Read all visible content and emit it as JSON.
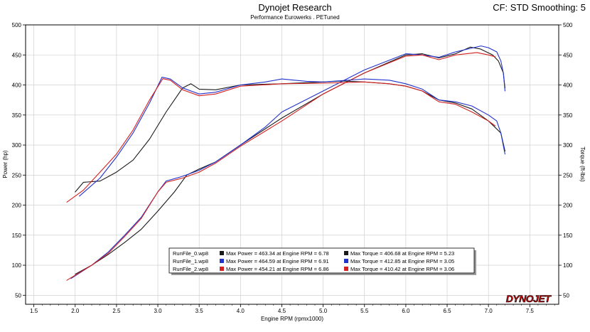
{
  "header": {
    "title": "Dynojet Research",
    "subtitle": "Performance Eurowerks . PETuned",
    "cf_label": "CF: STD Smoothing: 5"
  },
  "logo_text": "DYNOJET",
  "chart_data": {
    "type": "line",
    "xlabel": "Engine RPM (rpmx1000)",
    "ylabel_left": "Power (hp)",
    "ylabel_right": "Torque (ft-lbs)",
    "xlim": [
      1.4,
      7.85
    ],
    "ylim": [
      35,
      500
    ],
    "x_ticks": [
      "1.5",
      "2.0",
      "2.5",
      "3.0",
      "3.5",
      "4.0",
      "4.5",
      "5.0",
      "5.5",
      "6.0",
      "6.5",
      "7.0",
      "7.5"
    ],
    "y_ticks": [
      "50",
      "100",
      "150",
      "200",
      "250",
      "300",
      "350",
      "400",
      "450",
      "500"
    ],
    "grid": true,
    "colors": {
      "run0": "#1a1a1a",
      "run1": "#2233cc",
      "run2": "#d42020"
    },
    "legend": [
      {
        "file": "RunFile_0.wp8",
        "power": "Max Power = 463.34 at Engine RPM = 6.78",
        "torque": "Max Torque = 406.68 at Engine RPM = 5.23",
        "color": "#1a1a1a"
      },
      {
        "file": "RunFile_1.wp8",
        "power": "Max Power = 464.59 at Engine RPM = 6.91",
        "torque": "Max Torque = 412.85 at Engine RPM = 3.05",
        "color": "#2233cc"
      },
      {
        "file": "RunFile_2.wp8",
        "power": "Max Power = 454.21 at Engine RPM = 6.86",
        "torque": "Max Torque = 410.42 at Engine RPM = 3.06",
        "color": "#d42020"
      }
    ],
    "series": [
      {
        "run": "RunFile_0.wp8",
        "kind": "power",
        "color": "#1a1a1a",
        "points": [
          [
            2.0,
            85
          ],
          [
            2.2,
            100
          ],
          [
            2.4,
            118
          ],
          [
            2.6,
            138
          ],
          [
            2.8,
            160
          ],
          [
            3.0,
            190
          ],
          [
            3.2,
            222
          ],
          [
            3.35,
            250
          ],
          [
            3.5,
            260
          ],
          [
            3.7,
            272
          ],
          [
            4.0,
            300
          ],
          [
            4.5,
            345
          ],
          [
            5.0,
            385
          ],
          [
            5.5,
            420
          ],
          [
            6.0,
            450
          ],
          [
            6.2,
            452
          ],
          [
            6.4,
            445
          ],
          [
            6.6,
            452
          ],
          [
            6.78,
            463
          ],
          [
            6.9,
            460
          ],
          [
            7.05,
            450
          ],
          [
            7.12,
            440
          ],
          [
            7.18,
            420
          ],
          [
            7.2,
            395
          ]
        ]
      },
      {
        "run": "RunFile_1.wp8",
        "kind": "power",
        "color": "#2233cc",
        "points": [
          [
            1.95,
            78
          ],
          [
            2.2,
            100
          ],
          [
            2.4,
            122
          ],
          [
            2.6,
            150
          ],
          [
            2.8,
            180
          ],
          [
            3.0,
            222
          ],
          [
            3.1,
            240
          ],
          [
            3.3,
            248
          ],
          [
            3.5,
            258
          ],
          [
            3.7,
            272
          ],
          [
            4.0,
            300
          ],
          [
            4.3,
            330
          ],
          [
            4.5,
            355
          ],
          [
            5.0,
            390
          ],
          [
            5.5,
            425
          ],
          [
            6.0,
            452
          ],
          [
            6.2,
            450
          ],
          [
            6.4,
            446
          ],
          [
            6.6,
            455
          ],
          [
            6.91,
            465
          ],
          [
            7.0,
            462
          ],
          [
            7.1,
            455
          ],
          [
            7.15,
            440
          ],
          [
            7.18,
            420
          ],
          [
            7.2,
            390
          ]
        ]
      },
      {
        "run": "RunFile_2.wp8",
        "kind": "power",
        "color": "#d42020",
        "points": [
          [
            1.9,
            75
          ],
          [
            2.2,
            100
          ],
          [
            2.4,
            120
          ],
          [
            2.6,
            148
          ],
          [
            2.8,
            178
          ],
          [
            3.0,
            222
          ],
          [
            3.1,
            238
          ],
          [
            3.3,
            245
          ],
          [
            3.5,
            255
          ],
          [
            3.7,
            270
          ],
          [
            4.0,
            298
          ],
          [
            4.5,
            340
          ],
          [
            5.0,
            385
          ],
          [
            5.5,
            420
          ],
          [
            6.0,
            448
          ],
          [
            6.2,
            450
          ],
          [
            6.4,
            442
          ],
          [
            6.6,
            450
          ],
          [
            6.86,
            454
          ],
          [
            7.0,
            450
          ],
          [
            7.08,
            447
          ]
        ]
      },
      {
        "run": "RunFile_0.wp8",
        "kind": "torque",
        "color": "#1a1a1a",
        "points": [
          [
            2.0,
            222
          ],
          [
            2.1,
            238
          ],
          [
            2.3,
            240
          ],
          [
            2.5,
            255
          ],
          [
            2.7,
            275
          ],
          [
            2.9,
            310
          ],
          [
            3.1,
            355
          ],
          [
            3.3,
            395
          ],
          [
            3.4,
            402
          ],
          [
            3.5,
            393
          ],
          [
            3.7,
            392
          ],
          [
            4.0,
            400
          ],
          [
            4.5,
            402
          ],
          [
            5.0,
            405
          ],
          [
            5.23,
            406.7
          ],
          [
            5.5,
            405
          ],
          [
            5.8,
            402
          ],
          [
            6.0,
            398
          ],
          [
            6.2,
            390
          ],
          [
            6.4,
            375
          ],
          [
            6.6,
            370
          ],
          [
            6.8,
            360
          ],
          [
            7.0,
            340
          ],
          [
            7.15,
            320
          ],
          [
            7.2,
            290
          ]
        ]
      },
      {
        "run": "RunFile_1.wp8",
        "kind": "torque",
        "color": "#2233cc",
        "points": [
          [
            2.05,
            215
          ],
          [
            2.3,
            245
          ],
          [
            2.5,
            280
          ],
          [
            2.7,
            320
          ],
          [
            2.9,
            370
          ],
          [
            3.05,
            412.9
          ],
          [
            3.15,
            410
          ],
          [
            3.3,
            395
          ],
          [
            3.5,
            385
          ],
          [
            3.7,
            388
          ],
          [
            4.0,
            400
          ],
          [
            4.3,
            405
          ],
          [
            4.5,
            410
          ],
          [
            4.8,
            406
          ],
          [
            5.0,
            405
          ],
          [
            5.5,
            410
          ],
          [
            5.8,
            408
          ],
          [
            6.0,
            402
          ],
          [
            6.2,
            393
          ],
          [
            6.4,
            375
          ],
          [
            6.6,
            372
          ],
          [
            6.8,
            365
          ],
          [
            7.0,
            350
          ],
          [
            7.1,
            340
          ],
          [
            7.15,
            320
          ],
          [
            7.2,
            285
          ]
        ]
      },
      {
        "run": "RunFile_2.wp8",
        "kind": "torque",
        "color": "#d42020",
        "points": [
          [
            1.9,
            205
          ],
          [
            2.1,
            225
          ],
          [
            2.3,
            255
          ],
          [
            2.5,
            285
          ],
          [
            2.7,
            325
          ],
          [
            2.9,
            375
          ],
          [
            3.06,
            410.4
          ],
          [
            3.15,
            408
          ],
          [
            3.3,
            392
          ],
          [
            3.5,
            382
          ],
          [
            3.7,
            385
          ],
          [
            4.0,
            398
          ],
          [
            4.5,
            402
          ],
          [
            5.0,
            403
          ],
          [
            5.5,
            405
          ],
          [
            5.8,
            402
          ],
          [
            6.0,
            398
          ],
          [
            6.2,
            390
          ],
          [
            6.4,
            372
          ],
          [
            6.6,
            368
          ],
          [
            6.8,
            355
          ],
          [
            7.0,
            340
          ],
          [
            7.08,
            332
          ]
        ]
      }
    ]
  }
}
